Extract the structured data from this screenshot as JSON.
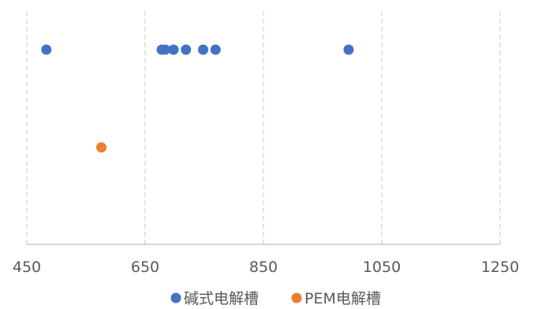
{
  "chart_data": {
    "type": "scatter",
    "title": "",
    "xlabel": "",
    "ylabel": "",
    "xlim": [
      450,
      1250
    ],
    "x_ticks": [
      450,
      650,
      850,
      1050,
      1250
    ],
    "x_tick_labels": [
      "450",
      "650",
      "850",
      "1050",
      "1250"
    ],
    "grid": "vertical dashed",
    "legend_position": "bottom",
    "series": [
      {
        "name": "碱式电解槽",
        "color": "#4472C4",
        "points": [
          {
            "x": 483,
            "y": 1
          },
          {
            "x": 678,
            "y": 1
          },
          {
            "x": 684,
            "y": 1
          },
          {
            "x": 698,
            "y": 1
          },
          {
            "x": 719,
            "y": 1
          },
          {
            "x": 748,
            "y": 1
          },
          {
            "x": 769,
            "y": 1
          },
          {
            "x": 994,
            "y": 1
          }
        ]
      },
      {
        "name": "PEM电解槽",
        "color": "#ED7D31",
        "points": [
          {
            "x": 576,
            "y": 0
          }
        ]
      }
    ]
  }
}
